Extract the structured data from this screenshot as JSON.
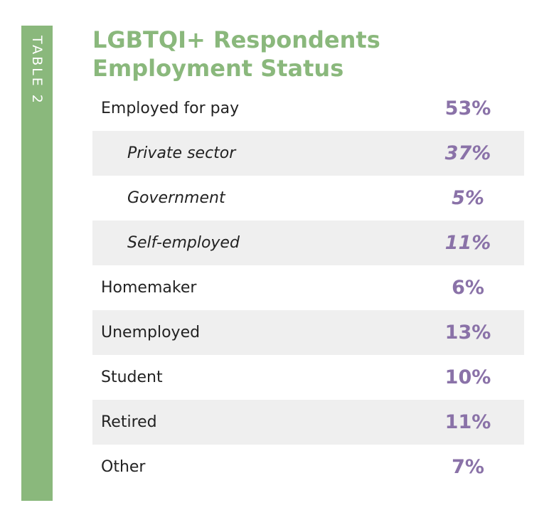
{
  "side_label": "TABLE 2",
  "title": {
    "line1": "LGBTQI+ Respondents",
    "line2": "Employment Status"
  },
  "rows": [
    {
      "label": "Employed for pay",
      "value": "53%"
    },
    {
      "label": "Private sector",
      "value": "37%"
    },
    {
      "label": "Government",
      "value": "5%"
    },
    {
      "label": "Self-employed",
      "value": "11%"
    },
    {
      "label": "Homemaker",
      "value": "6%"
    },
    {
      "label": "Unemployed",
      "value": "13%"
    },
    {
      "label": "Student",
      "value": "10%"
    },
    {
      "label": "Retired",
      "value": "11%"
    },
    {
      "label": "Other",
      "value": "7%"
    }
  ],
  "colors": {
    "accent_green": "#8ab87c",
    "value_purple": "#8a72a8",
    "row_shade": "#efefef"
  }
}
